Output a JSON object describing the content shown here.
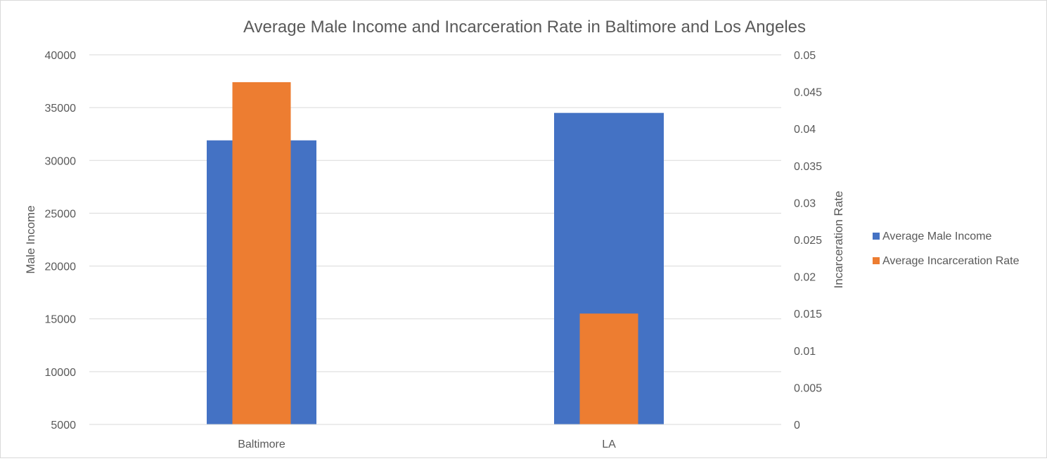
{
  "chart_data": {
    "type": "bar",
    "title": "Average Male Income and Incarceration Rate in Baltimore and Los Angeles",
    "categories": [
      "Baltimore",
      "LA"
    ],
    "series": [
      {
        "name": "Average Male Income",
        "axis": "left",
        "values": [
          31900,
          34500
        ],
        "color": "#4472C4"
      },
      {
        "name": "Average  Incarceration Rate",
        "axis": "right",
        "values": [
          0.0463,
          0.015
        ],
        "color": "#ED7D31"
      }
    ],
    "ylabel": "Male Income",
    "ylim": [
      5000,
      40000
    ],
    "yticks": [
      "40000",
      "35000",
      "30000",
      "25000",
      "20000",
      "15000",
      "10000",
      "5000"
    ],
    "y2label": "Incarceration Rate",
    "y2lim": [
      0,
      0.05
    ],
    "y2ticks": [
      "0.05",
      "0.045",
      "0.04",
      "0.035",
      "0.03",
      "0.025",
      "0.02",
      "0.015",
      "0.01",
      "0.005",
      "0"
    ],
    "grid": true,
    "legend": "right"
  }
}
